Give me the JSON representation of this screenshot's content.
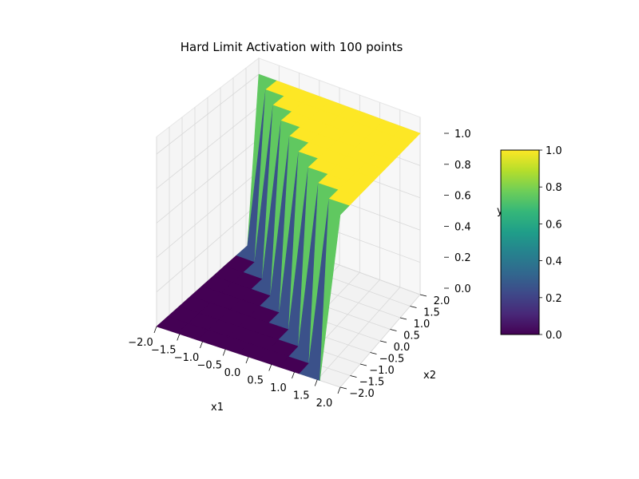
{
  "chart_data": {
    "type": "surface3d",
    "title": "Hard Limit Activation with 100 points",
    "xlabel": "x1",
    "ylabel": "x2",
    "zlabel": "y",
    "xlim": [
      -2.0,
      2.0
    ],
    "ylim": [
      -2.0,
      2.0
    ],
    "zlim": [
      0.0,
      1.0
    ],
    "x_ticks": [
      "−2.0",
      "−1.5",
      "−1.0",
      "−0.5",
      "0.0",
      "0.5",
      "1.0",
      "1.5",
      "2.0"
    ],
    "y_ticks": [
      "−2.0",
      "−1.5",
      "−1.0",
      "−0.5",
      "0.0",
      "0.5",
      "1.0",
      "1.5",
      "2.0"
    ],
    "z_ticks": [
      "0.0",
      "0.2",
      "0.4",
      "0.6",
      "0.8",
      "1.0"
    ],
    "function": "y = 1 if x1 + x2 >= 0 else 0",
    "grid_points": 10,
    "grid": true,
    "colormap": "viridis",
    "colorbar": {
      "range": [
        0.0,
        1.0
      ],
      "ticks": [
        "0.0",
        "0.2",
        "0.4",
        "0.6",
        "0.8",
        "1.0"
      ],
      "colors": [
        "#440154",
        "#482878",
        "#3e4989",
        "#31688e",
        "#26828e",
        "#1f9e89",
        "#35b779",
        "#6ece58",
        "#b5de2b",
        "#fde725"
      ]
    }
  }
}
